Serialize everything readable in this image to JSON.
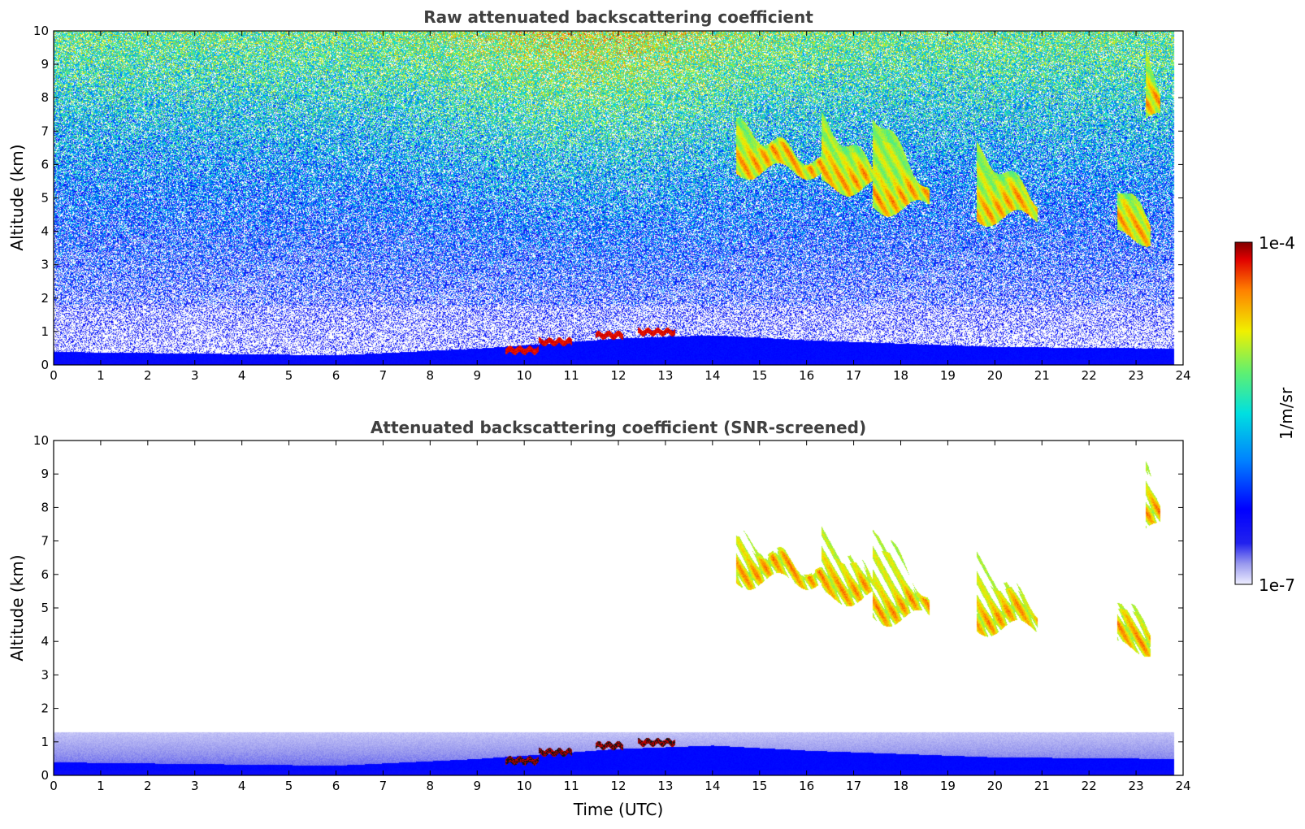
{
  "chart_data": [
    {
      "type": "heatmap",
      "title": "Raw attenuated backscattering coefficient",
      "xlabel": "",
      "ylabel": "Altitude (km)",
      "xlim": [
        0,
        24
      ],
      "ylim": [
        0,
        10
      ],
      "xticks": [
        "0",
        "1",
        "2",
        "3",
        "4",
        "5",
        "6",
        "7",
        "8",
        "9",
        "10",
        "11",
        "12",
        "13",
        "14",
        "15",
        "16",
        "17",
        "18",
        "19",
        "20",
        "21",
        "22",
        "23",
        "24"
      ],
      "yticks": [
        "0",
        "1",
        "2",
        "3",
        "4",
        "5",
        "6",
        "7",
        "8",
        "9",
        "10"
      ],
      "features": {
        "boundary_layer": [
          [
            0,
            0.4
          ],
          [
            6,
            0.3
          ],
          [
            9,
            0.5
          ],
          [
            12,
            0.8
          ],
          [
            14,
            0.9
          ],
          [
            16,
            0.75
          ],
          [
            20,
            0.55
          ],
          [
            23.8,
            0.5
          ]
        ],
        "low_cloud_segments": [
          [
            9.6,
            10.3,
            0.45
          ],
          [
            10.3,
            11,
            0.7
          ],
          [
            11.5,
            12.1,
            0.9
          ],
          [
            12.4,
            13.2,
            1.0
          ]
        ],
        "high_clouds": [
          {
            "t0": 14.5,
            "t1": 16.3,
            "base": 5.8,
            "top": 7.2,
            "peak": 5.9
          },
          {
            "t0": 16.3,
            "t1": 17.5,
            "base": 5.3,
            "top": 7.4,
            "peak": 5.6
          },
          {
            "t0": 17.4,
            "t1": 18.6,
            "base": 4.7,
            "top": 7.6,
            "peak": 5.0
          },
          {
            "t0": 19.6,
            "t1": 20.9,
            "base": 4.4,
            "top": 6.5,
            "peak": 4.8
          },
          {
            "t0": 22.6,
            "t1": 23.3,
            "base": 3.8,
            "top": 5.4,
            "peak": 4.2
          },
          {
            "t0": 23.2,
            "t1": 23.5,
            "base": 7.3,
            "top": 9.8,
            "peak": 8.0
          }
        ]
      }
    },
    {
      "type": "heatmap",
      "title": "Attenuated backscattering coefficient (SNR-screened)",
      "xlabel": "Time (UTC)",
      "ylabel": "Altitude (km)",
      "xlim": [
        0,
        24
      ],
      "ylim": [
        0,
        10
      ],
      "xticks": [
        "0",
        "1",
        "2",
        "3",
        "4",
        "5",
        "6",
        "7",
        "8",
        "9",
        "10",
        "11",
        "12",
        "13",
        "14",
        "15",
        "16",
        "17",
        "18",
        "19",
        "20",
        "21",
        "22",
        "23",
        "24"
      ],
      "yticks": [
        "0",
        "1",
        "2",
        "3",
        "4",
        "5",
        "6",
        "7",
        "8",
        "9",
        "10"
      ]
    }
  ],
  "colorbar": {
    "max_label": "1e-4",
    "min_label": "1e-7",
    "unit_label": "1/m/sr",
    "range": [
      1e-07,
      0.0001
    ],
    "scale": "log",
    "colormap": "jet"
  }
}
